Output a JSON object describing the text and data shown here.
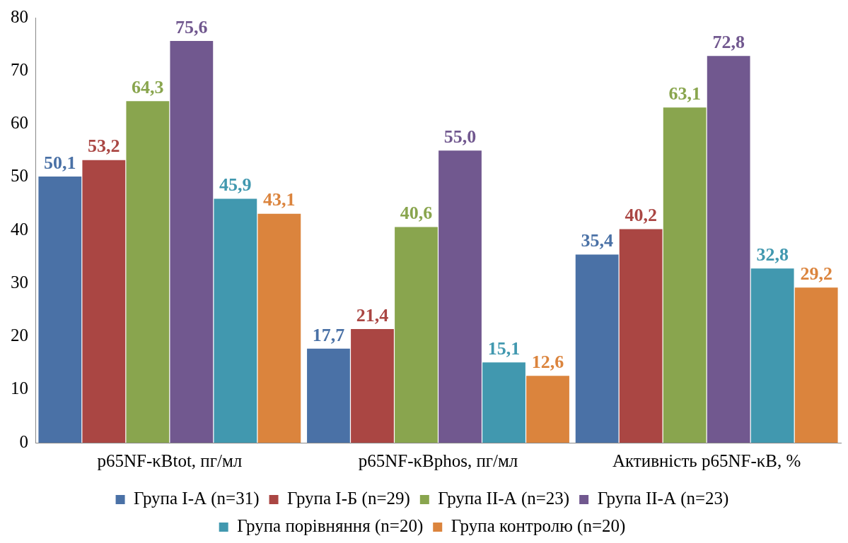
{
  "chart_data": {
    "type": "bar",
    "categories": [
      "p65NF-κBtot, пг/мл",
      "p65NF-κBphos, пг/мл",
      "Активність p65NF-κB, %"
    ],
    "series": [
      {
        "name": "Група I-А (n=31)",
        "color": "#4a71a6",
        "values": [
          50.1,
          17.7,
          35.4
        ],
        "value_labels": [
          "50,1",
          "17,7",
          "35,4"
        ]
      },
      {
        "name": "Група I-Б (n=29)",
        "color": "#aa4643",
        "values": [
          53.2,
          21.4,
          40.2
        ],
        "value_labels": [
          "53,2",
          "21,4",
          "40,2"
        ]
      },
      {
        "name": "Група II-А (n=23)",
        "color": "#89a54e",
        "values": [
          64.3,
          40.6,
          63.1
        ],
        "value_labels": [
          "64,3",
          "40,6",
          "63,1"
        ]
      },
      {
        "name": "Група II-А (n=23)",
        "color": "#71588f",
        "values": [
          75.6,
          55.0,
          72.8
        ],
        "value_labels": [
          "75,6",
          "55,0",
          "72,8"
        ]
      },
      {
        "name": "Група порівняння (n=20)",
        "color": "#4198af",
        "values": [
          45.9,
          15.1,
          32.8
        ],
        "value_labels": [
          "45,9",
          "15,1",
          "32,8"
        ]
      },
      {
        "name": "Група контролю (n=20)",
        "color": "#db843d",
        "values": [
          43.1,
          12.6,
          29.2
        ],
        "value_labels": [
          "43,1",
          "12,6",
          "29,2"
        ]
      }
    ],
    "ylim": [
      0,
      80
    ],
    "yticks": [
      0,
      10,
      20,
      30,
      40,
      50,
      60,
      70,
      80
    ],
    "grid": false,
    "legend": "bottom"
  }
}
